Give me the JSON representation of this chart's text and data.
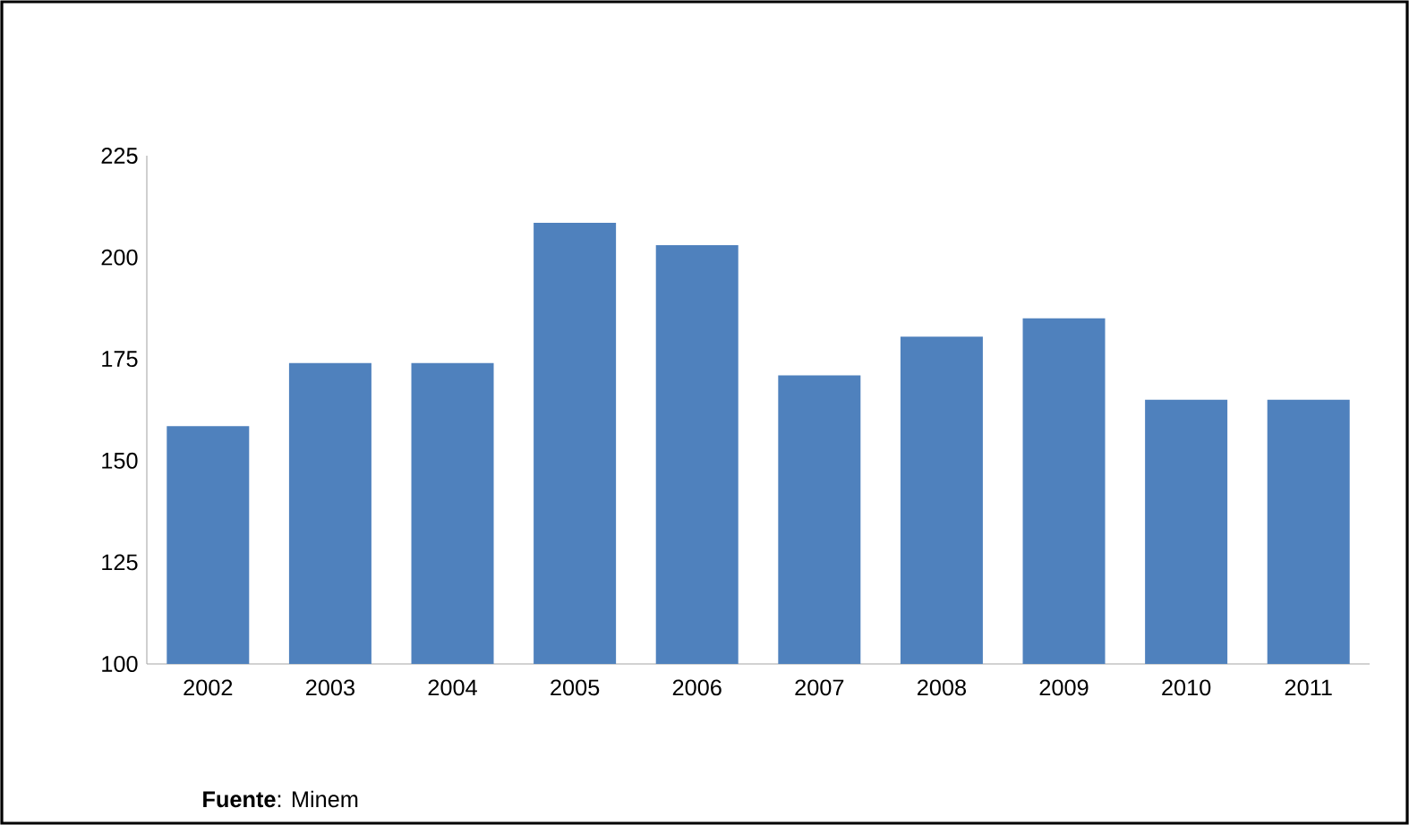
{
  "chart_data": {
    "type": "bar",
    "categories": [
      "2002",
      "2003",
      "2004",
      "2005",
      "2006",
      "2007",
      "2008",
      "2009",
      "2010",
      "2011"
    ],
    "values": [
      158.5,
      174,
      174,
      208.5,
      203,
      171,
      180.5,
      185,
      165,
      165
    ],
    "color": "#4f81bd",
    "ylim": [
      100,
      225
    ],
    "yticks": [
      100,
      125,
      150,
      175,
      200,
      225
    ],
    "grid": false,
    "annotations": [
      "**Fuente**: Minem"
    ]
  }
}
